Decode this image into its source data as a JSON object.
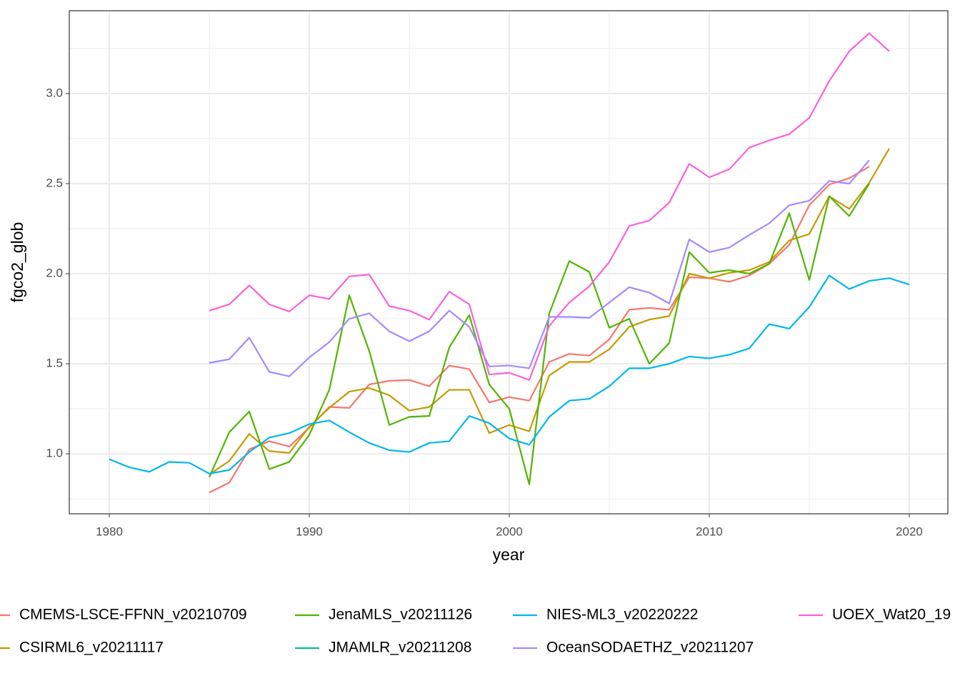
{
  "chart_data": {
    "type": "line",
    "x_label": "year",
    "y_label": "fgco2_glob",
    "x": [
      1980,
      1981,
      1982,
      1983,
      1984,
      1985,
      1986,
      1987,
      1988,
      1989,
      1990,
      1991,
      1992,
      1993,
      1994,
      1995,
      1996,
      1997,
      1998,
      1999,
      2000,
      2001,
      2002,
      2003,
      2004,
      2005,
      2006,
      2007,
      2008,
      2009,
      2010,
      2011,
      2012,
      2013,
      2014,
      2015,
      2016,
      2017,
      2018,
      2019,
      2020
    ],
    "xlim": [
      1978,
      2021.93
    ],
    "ylim": [
      0.667,
      3.46
    ],
    "xticks": [
      1980,
      1990,
      2000,
      2010,
      2020
    ],
    "yticks": [
      {
        "value": 1.0,
        "label": "1.0"
      },
      1.5,
      {
        "value": 2.0,
        "label": "2.0"
      },
      2.5,
      {
        "value": 3.0,
        "label": "3.0"
      }
    ],
    "grid": true,
    "legend": "bottom",
    "series": [
      {
        "name": "CMEMS-LSCE-FFNN_v20210709",
        "color": "#F8766D",
        "values": [
          null,
          null,
          null,
          null,
          null,
          0.785,
          0.84,
          1.025,
          1.07,
          1.04,
          1.145,
          1.26,
          1.255,
          1.385,
          1.405,
          1.41,
          1.375,
          1.49,
          1.47,
          1.285,
          1.315,
          1.295,
          1.51,
          1.555,
          1.545,
          1.635,
          1.8,
          1.81,
          1.8,
          1.98,
          1.975,
          1.955,
          1.99,
          2.055,
          2.16,
          2.38,
          2.495,
          2.53,
          2.595,
          null,
          null
        ]
      },
      {
        "name": "CSIRML6_v20211117",
        "color": "#C49A00",
        "values": [
          null,
          null,
          null,
          null,
          null,
          0.885,
          0.96,
          1.11,
          1.015,
          1.005,
          1.15,
          1.255,
          1.345,
          1.365,
          1.325,
          1.24,
          1.26,
          1.355,
          1.355,
          1.115,
          1.16,
          1.125,
          1.435,
          1.51,
          1.51,
          1.58,
          1.705,
          1.745,
          1.765,
          2.0,
          1.975,
          2.005,
          2.02,
          2.065,
          2.185,
          2.22,
          2.43,
          2.36,
          2.505,
          2.695,
          null
        ]
      },
      {
        "name": "JenaMLS_v20211126",
        "color": "#53B400",
        "values": [
          null,
          null,
          null,
          null,
          null,
          0.87,
          1.12,
          1.235,
          0.915,
          0.955,
          1.105,
          1.355,
          1.88,
          1.57,
          1.16,
          1.205,
          1.21,
          1.59,
          1.77,
          1.385,
          1.25,
          0.83,
          1.78,
          2.07,
          2.01,
          1.7,
          1.75,
          1.5,
          1.615,
          2.12,
          2.005,
          2.02,
          2.0,
          2.055,
          2.335,
          1.965,
          2.43,
          2.32,
          2.5,
          null,
          null
        ]
      },
      {
        "name": "JMAMLR_v20211208",
        "color": "#00C094",
        "values": [
          null,
          null,
          null,
          null,
          null,
          null,
          null,
          null,
          null,
          null,
          null,
          null,
          null,
          null,
          null,
          null,
          null,
          null,
          null,
          null,
          null,
          null,
          null,
          null,
          null,
          null,
          null,
          null,
          null,
          null,
          null,
          null,
          null,
          null,
          null,
          null,
          null,
          null,
          null,
          null,
          null
        ]
      },
      {
        "name": "NIES-ML3_v20220222",
        "color": "#00B6EB",
        "values": [
          0.97,
          0.925,
          0.9,
          0.955,
          0.95,
          0.89,
          0.91,
          1.01,
          1.09,
          1.115,
          1.165,
          1.185,
          1.12,
          1.06,
          1.02,
          1.01,
          1.06,
          1.07,
          1.21,
          1.17,
          1.085,
          1.05,
          1.205,
          1.295,
          1.305,
          1.375,
          1.475,
          1.475,
          1.5,
          1.54,
          1.53,
          1.55,
          1.585,
          1.72,
          1.695,
          1.815,
          1.99,
          1.915,
          1.96,
          1.975,
          1.94
        ]
      },
      {
        "name": "OceanSODAETHZ_v20211207",
        "color": "#A58AFF",
        "values": [
          null,
          null,
          null,
          null,
          null,
          1.505,
          1.525,
          1.645,
          1.455,
          1.43,
          1.535,
          1.62,
          1.75,
          1.78,
          1.68,
          1.625,
          1.68,
          1.795,
          1.705,
          1.485,
          1.49,
          1.475,
          1.76,
          1.76,
          1.755,
          1.84,
          1.925,
          1.895,
          1.835,
          2.19,
          2.12,
          2.145,
          2.215,
          2.28,
          2.38,
          2.405,
          2.515,
          2.5,
          2.63,
          null,
          null
        ]
      },
      {
        "name": "UOEX_Wat20_19",
        "color": "#FB61D7",
        "values": [
          null,
          null,
          null,
          null,
          null,
          1.795,
          1.83,
          1.935,
          1.83,
          1.79,
          1.88,
          1.86,
          1.985,
          1.995,
          1.82,
          1.795,
          1.745,
          1.9,
          1.83,
          1.44,
          1.45,
          1.41,
          1.71,
          1.84,
          1.93,
          2.065,
          2.265,
          2.295,
          2.395,
          2.61,
          2.535,
          2.58,
          2.7,
          2.74,
          2.775,
          2.865,
          3.07,
          3.235,
          3.335,
          3.235,
          null
        ]
      }
    ]
  }
}
